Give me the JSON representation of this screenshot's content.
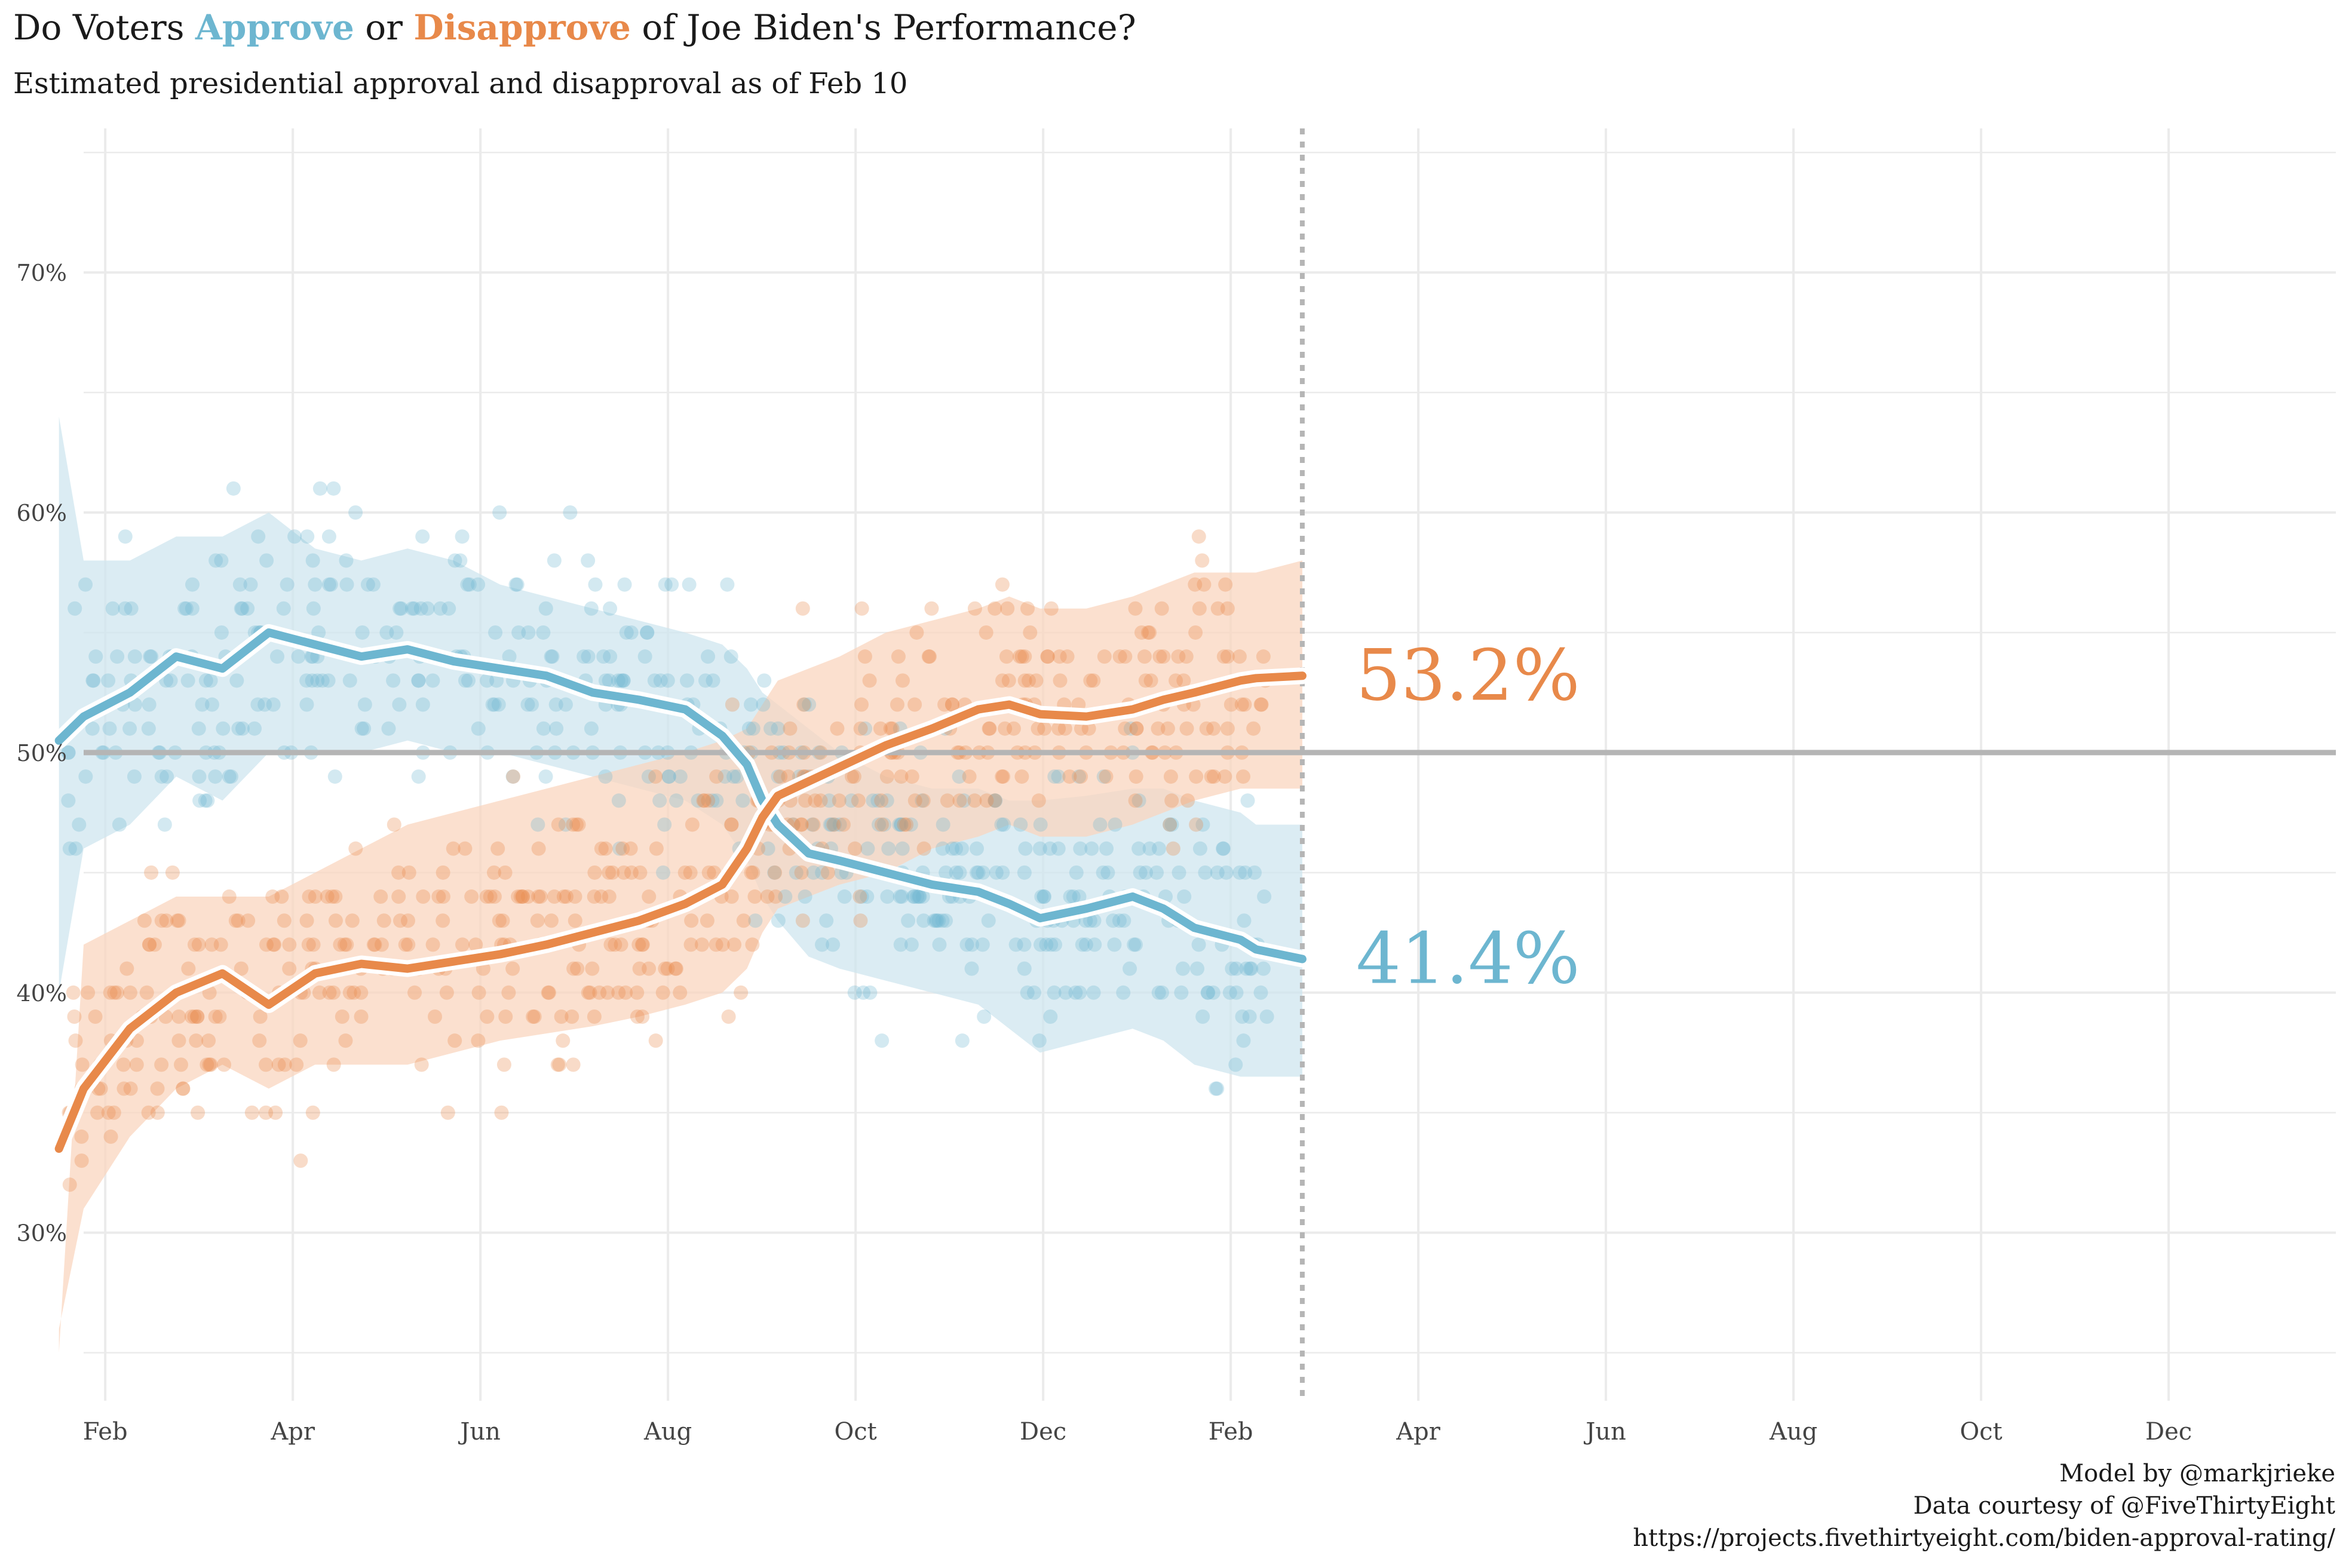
{
  "header": {
    "title_prefix": "Do Voters ",
    "title_approve": "Approve",
    "title_mid": " or ",
    "title_disapprove": "Disapprove",
    "title_suffix": " of Joe Biden's Performance?",
    "subtitle": "Estimated presidential approval and disapproval as of Feb 10"
  },
  "caption": {
    "line1": "Model by @markjrieke",
    "line2": "Data courtesy of @FiveThirtyEight",
    "line3": "https://projects.fivethirtyeight.com/biden-approval-rating/"
  },
  "colors": {
    "approve": "#6db6d0",
    "disapprove": "#e8894a",
    "approve_band": "#cfe6ef",
    "disapprove_band": "#f9d6bf",
    "reference": "#b5b5b5",
    "grid": "#ebebeb"
  },
  "chart_data": {
    "type": "line",
    "x_ticks": [
      "Feb",
      "Apr",
      "Jun",
      "Aug",
      "Oct",
      "Dec",
      "Feb",
      "Apr",
      "Jun",
      "Aug",
      "Oct",
      "Dec"
    ],
    "x_domain_days": [
      0,
      730
    ],
    "y_ticks": [
      "30%",
      "40%",
      "50%",
      "60%",
      "70%"
    ],
    "ylim": [
      23,
      76
    ],
    "reference_line_y": 50,
    "as_of_day": 395,
    "grid": true,
    "series": [
      {
        "key": "approve",
        "final_label": "41.4%",
        "final_value": 41.4,
        "trend_x": [
          -8,
          0,
          15,
          30,
          45,
          60,
          75,
          90,
          105,
          120,
          135,
          150,
          165,
          180,
          195,
          207,
          215,
          220,
          225,
          235,
          245,
          260,
          275,
          290,
          300,
          310,
          325,
          340,
          350,
          360,
          375,
          380,
          395
        ],
        "trend_y": [
          50.5,
          51.5,
          52.5,
          54,
          53.5,
          55,
          54.5,
          54,
          54.3,
          53.8,
          53.5,
          53.2,
          52.5,
          52.2,
          51.8,
          50.7,
          49.5,
          48,
          47,
          45.8,
          45.5,
          45,
          44.5,
          44.2,
          43.7,
          43.1,
          43.5,
          44,
          43.5,
          42.7,
          42.2,
          41.8,
          41.4
        ],
        "band_upper": [
          64,
          58,
          58,
          59,
          59,
          60,
          58.5,
          58,
          58.5,
          58,
          57,
          56.5,
          56,
          55.5,
          55,
          54.5,
          53.5,
          52.5,
          52,
          51,
          50,
          49,
          48.5,
          48.5,
          48,
          48,
          48.2,
          48.5,
          48.5,
          48,
          47.5,
          47,
          47
        ],
        "band_lower": [
          40,
          46,
          47,
          49,
          48,
          50,
          50,
          50,
          50.5,
          50,
          50,
          49.5,
          49,
          48.5,
          48,
          47,
          45.5,
          44,
          43,
          41.5,
          41,
          40.5,
          40,
          39.5,
          38.5,
          37.5,
          38,
          38.5,
          38,
          37,
          36.5,
          36.5,
          36.5
        ]
      },
      {
        "key": "disapprove",
        "final_label": "53.2%",
        "final_value": 53.2,
        "trend_x": [
          -8,
          0,
          15,
          30,
          45,
          60,
          75,
          90,
          105,
          120,
          135,
          150,
          165,
          180,
          195,
          207,
          215,
          220,
          225,
          235,
          245,
          260,
          275,
          290,
          300,
          310,
          325,
          340,
          350,
          360,
          375,
          380,
          395
        ],
        "trend_y": [
          33.5,
          36,
          38.5,
          40,
          40.8,
          39.5,
          40.8,
          41.2,
          41,
          41.3,
          41.6,
          42,
          42.5,
          43,
          43.7,
          44.5,
          46,
          47.3,
          48.2,
          48.8,
          49.4,
          50.3,
          51,
          51.8,
          52,
          51.6,
          51.5,
          51.8,
          52.2,
          52.5,
          53,
          53.1,
          53.2
        ],
        "band_upper": [
          25,
          42,
          43,
          44,
          44,
          44,
          45,
          46,
          47,
          47.5,
          48,
          48.5,
          49,
          49.5,
          50,
          50.5,
          51,
          52,
          53,
          53.5,
          54,
          55,
          55.5,
          56,
          56.5,
          56,
          56,
          56.5,
          57,
          57.5,
          57.5,
          57.5,
          58
        ],
        "band_lower": [
          26,
          31,
          34,
          36,
          37,
          36,
          37,
          37,
          37,
          37.5,
          38,
          38.3,
          38.6,
          39,
          39.5,
          40,
          41,
          42.5,
          43.5,
          44,
          44.5,
          45,
          46,
          46.5,
          47,
          46.5,
          46.5,
          47,
          47.5,
          48,
          48.5,
          48.5,
          48.5
        ]
      }
    ]
  }
}
